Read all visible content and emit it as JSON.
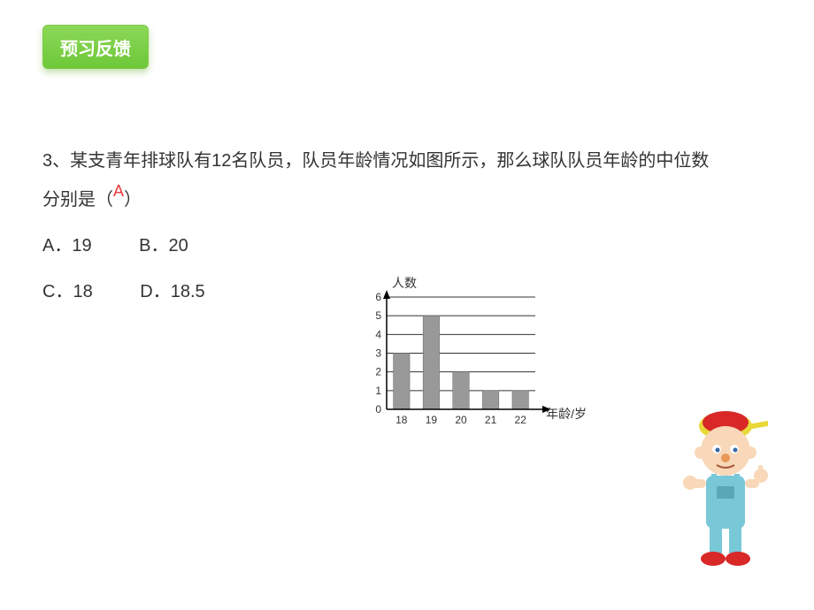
{
  "header": {
    "button_label": "预习反馈",
    "button_bg_top": "#8bd858",
    "button_bg_bottom": "#6ec838",
    "button_text_color": "#ffffff"
  },
  "question": {
    "number": "3、",
    "text_part1": "某支青年排球队有12名队员，队员年龄情况如图所示，那么球队队员年龄的中位数",
    "text_part2": "分别是（",
    "answer": "A",
    "answer_color": "#e83838",
    "text_part3": "）"
  },
  "options": {
    "a": "A．19",
    "b": "B．20",
    "c": "C．18",
    "d": "D．18.5"
  },
  "chart": {
    "type": "bar",
    "ylabel": "人数",
    "xlabel": "年龄/岁",
    "categories": [
      "18",
      "19",
      "20",
      "21",
      "22"
    ],
    "values": [
      3,
      5,
      2,
      1,
      1
    ],
    "ylim": [
      0,
      6
    ],
    "ytick_step": 1,
    "bar_color": "#999999",
    "grid_color": "#333333",
    "axis_color": "#000000",
    "background_color": "#ffffff",
    "bar_width_ratio": 0.55,
    "label_fontsize": 12
  },
  "colors": {
    "page_bg": "#ffffff",
    "text": "#333333"
  }
}
